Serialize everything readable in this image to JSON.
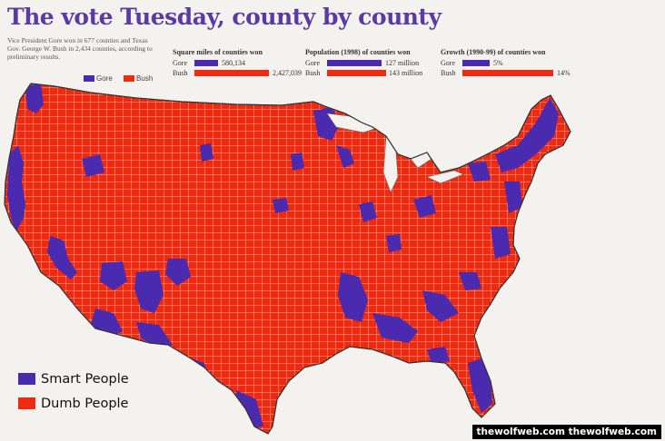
{
  "title": "The vote Tuesday, county by county",
  "intro": "Vice President Gore won in 677 counties and Texas Gov. George W. Bush in 2,434 counties, according to preliminary results.",
  "colors": {
    "gore": "#4a2bb0",
    "bush": "#ee2a10",
    "background": "#f4f2ee"
  },
  "mini_legend": {
    "gore": "Gore",
    "bush": "Bush"
  },
  "stats": [
    {
      "heading": "Square miles of counties won",
      "rows": [
        {
          "name": "Gore",
          "value": "580,134",
          "share": 0.193
        },
        {
          "name": "Bush",
          "value": "2,427,039",
          "share": 0.807
        }
      ]
    },
    {
      "heading": "Population (1998) of counties won",
      "rows": [
        {
          "name": "Gore",
          "value": "127 million",
          "share": 0.47
        },
        {
          "name": "Bush",
          "value": "143 million",
          "share": 0.53
        }
      ]
    },
    {
      "heading": "Growth (1990-99) of counties won",
      "rows": [
        {
          "name": "Gore",
          "value": "5%",
          "share": 0.26
        },
        {
          "name": "Bush",
          "value": "14%",
          "share": 0.74
        }
      ]
    }
  ],
  "legend": {
    "gore_label": "Smart People",
    "bush_label": "Dumb People"
  },
  "watermark": "thewolfweb.com thewolfweb.com"
}
